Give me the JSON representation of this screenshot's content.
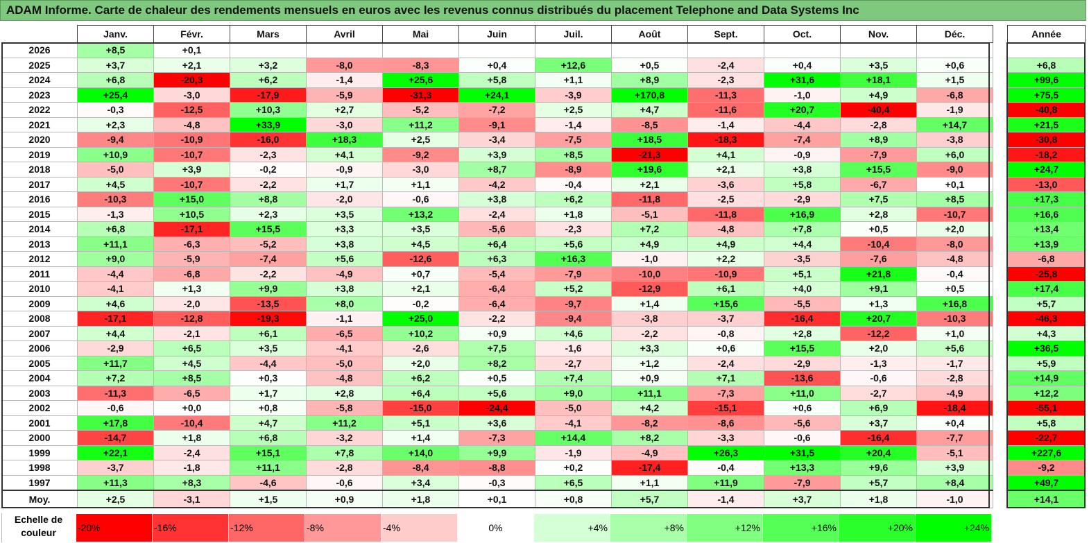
{
  "title": "ADAM Informe. Carte de chaleur des rendements mensuels en euros avec les revenus connus distribués du placement Telephone and Data Systems Inc",
  "chart_data": {
    "type": "heatmap",
    "months": [
      "Janv.",
      "Févr.",
      "Mars",
      "Avril",
      "Mai",
      "Juin",
      "Juil.",
      "Août",
      "Sept.",
      "Oct.",
      "Nov.",
      "Déc."
    ],
    "year_column_label": "Année",
    "rows": [
      {
        "year": "2026",
        "values": [
          "+8,5",
          "+0,1",
          "",
          "",
          "",
          "",
          "",
          "",
          "",
          "",
          "",
          ""
        ],
        "annual": ""
      },
      {
        "year": "2025",
        "values": [
          "+3,7",
          "+2,1",
          "+3,2",
          "-8,0",
          "-8,3",
          "+0,4",
          "+12,6",
          "+0,5",
          "-2,4",
          "+0,4",
          "+3,5",
          "+0,6"
        ],
        "annual": "+6,8"
      },
      {
        "year": "2024",
        "values": [
          "+6,8",
          "-20,3",
          "+6,2",
          "-1,4",
          "+25,6",
          "+5,8",
          "+1,1",
          "+8,9",
          "-2,3",
          "+31,6",
          "+18,1",
          "+1,5"
        ],
        "annual": "+99,6"
      },
      {
        "year": "2023",
        "values": [
          "+25,4",
          "-3,0",
          "-17,9",
          "-5,9",
          "-31,3",
          "+24,1",
          "-3,9",
          "+170,8",
          "-11,3",
          "-1,0",
          "+4,9",
          "-6,8"
        ],
        "annual": "+75,5"
      },
      {
        "year": "2022",
        "values": [
          "-0,3",
          "-12,5",
          "+10,3",
          "+2,7",
          "-5,2",
          "-7,2",
          "+2,5",
          "+4,7",
          "-11,6",
          "+20,7",
          "-40,4",
          "-1,9"
        ],
        "annual": "-40,8"
      },
      {
        "year": "2021",
        "values": [
          "+2,3",
          "-4,8",
          "+33,9",
          "-3,0",
          "+11,2",
          "-9,1",
          "-1,4",
          "-8,5",
          "-1,4",
          "-4,4",
          "-2,8",
          "+14,7"
        ],
        "annual": "+21,5"
      },
      {
        "year": "2020",
        "values": [
          "-9,4",
          "-10,9",
          "-16,0",
          "+18,3",
          "+2,5",
          "-3,4",
          "-7,5",
          "+18,5",
          "-18,3",
          "-7,4",
          "+8,9",
          "-3,8"
        ],
        "annual": "-30,8"
      },
      {
        "year": "2019",
        "values": [
          "+10,9",
          "-10,7",
          "-2,3",
          "+4,1",
          "-9,2",
          "+3,9",
          "+8,5",
          "-21,3",
          "+4,1",
          "-0,9",
          "-7,9",
          "+6,0"
        ],
        "annual": "-18,2"
      },
      {
        "year": "2018",
        "values": [
          "-5,0",
          "+3,9",
          "-0,2",
          "-0,9",
          "-3,0",
          "+8,7",
          "-8,9",
          "+19,6",
          "+2,1",
          "+3,8",
          "+15,5",
          "-9,0"
        ],
        "annual": "+24,7"
      },
      {
        "year": "2017",
        "values": [
          "+4,5",
          "-10,7",
          "-2,2",
          "+1,7",
          "+1,1",
          "-4,2",
          "-0,4",
          "+2,1",
          "-3,6",
          "+5,8",
          "-6,7",
          "+0,1"
        ],
        "annual": "-13,0"
      },
      {
        "year": "2016",
        "values": [
          "-10,3",
          "+15,0",
          "+8,8",
          "-2,0",
          "-0,6",
          "+3,8",
          "+6,2",
          "-11,8",
          "-2,5",
          "-2,9",
          "+7,5",
          "+8,5"
        ],
        "annual": "+17,3"
      },
      {
        "year": "2015",
        "values": [
          "-1,3",
          "+10,5",
          "+2,3",
          "+3,5",
          "+13,2",
          "-2,4",
          "+1,8",
          "-5,1",
          "-11,8",
          "+16,9",
          "+2,8",
          "-10,7"
        ],
        "annual": "+16,6"
      },
      {
        "year": "2014",
        "values": [
          "+6,8",
          "-17,1",
          "+15,5",
          "+3,3",
          "+3,5",
          "-5,6",
          "-2,3",
          "+7,2",
          "-4,8",
          "+7,8",
          "+0,5",
          "+2,0"
        ],
        "annual": "+13,4"
      },
      {
        "year": "2013",
        "values": [
          "+11,1",
          "-6,3",
          "-5,2",
          "+3,8",
          "+4,5",
          "+6,4",
          "+5,6",
          "+4,9",
          "+4,9",
          "+4,4",
          "-10,4",
          "-8,0"
        ],
        "annual": "+13,9"
      },
      {
        "year": "2012",
        "values": [
          "+9,0",
          "-5,9",
          "-7,4",
          "+5,6",
          "-12,6",
          "+6,3",
          "+16,3",
          "-1,0",
          "+2,2",
          "-3,5",
          "-7,6",
          "-4,8"
        ],
        "annual": "-6,8"
      },
      {
        "year": "2011",
        "values": [
          "-4,4",
          "-6,8",
          "-2,2",
          "-4,9",
          "+0,7",
          "-5,4",
          "-7,9",
          "-10,0",
          "-10,9",
          "+5,1",
          "+21,8",
          "-0,4"
        ],
        "annual": "-25,8"
      },
      {
        "year": "2010",
        "values": [
          "-4,1",
          "+1,3",
          "+9,9",
          "+3,8",
          "+2,1",
          "-6,4",
          "+5,2",
          "-12,9",
          "+6,1",
          "+4,0",
          "+9,1",
          "+0,5"
        ],
        "annual": "+17,4"
      },
      {
        "year": "2009",
        "values": [
          "+4,6",
          "-2,0",
          "-13,5",
          "+8,0",
          "-0,2",
          "-6,4",
          "-9,7",
          "+1,4",
          "+15,6",
          "-5,5",
          "+1,3",
          "+16,8"
        ],
        "annual": "+5,7"
      },
      {
        "year": "2008",
        "values": [
          "-17,1",
          "-12,8",
          "-19,3",
          "-1,1",
          "+25,0",
          "-2,2",
          "-9,4",
          "-3,8",
          "-3,7",
          "-16,4",
          "+20,7",
          "-10,3"
        ],
        "annual": "-46,3"
      },
      {
        "year": "2007",
        "values": [
          "+4,4",
          "-2,1",
          "+6,1",
          "-6,5",
          "+10,2",
          "+0,9",
          "+4,6",
          "-2,2",
          "-0,8",
          "+2,8",
          "-12,2",
          "+1,0"
        ],
        "annual": "+4,3"
      },
      {
        "year": "2006",
        "values": [
          "-2,9",
          "+6,5",
          "+3,5",
          "-4,1",
          "-2,6",
          "+7,5",
          "-1,6",
          "+3,3",
          "+0,6",
          "+15,5",
          "+2,0",
          "+5,6"
        ],
        "annual": "+36,5"
      },
      {
        "year": "2005",
        "values": [
          "+11,7",
          "+4,5",
          "-4,4",
          "-5,0",
          "+2,0",
          "+8,2",
          "-2,7",
          "+1,2",
          "-2,4",
          "-2,9",
          "-1,3",
          "-1,7"
        ],
        "annual": "+5,9"
      },
      {
        "year": "2004",
        "values": [
          "+7,2",
          "+8,5",
          "+0,3",
          "-4,8",
          "+6,2",
          "+0,5",
          "+7,4",
          "+0,9",
          "+7,1",
          "-13,6",
          "-0,6",
          "-2,8"
        ],
        "annual": "+14,9"
      },
      {
        "year": "2003",
        "values": [
          "-11,3",
          "-6,5",
          "+1,7",
          "+2,8",
          "+6,4",
          "+5,6",
          "+9,0",
          "+11,1",
          "-7,3",
          "+11,0",
          "-2,7",
          "-4,9"
        ],
        "annual": "+12,2"
      },
      {
        "year": "2002",
        "values": [
          "-0,6",
          "+0,0",
          "+0,8",
          "-5,8",
          "-15,0",
          "-24,4",
          "-5,0",
          "+4,2",
          "-15,1",
          "+0,6",
          "+6,9",
          "-18,4"
        ],
        "annual": "-55,1"
      },
      {
        "year": "2001",
        "values": [
          "+17,8",
          "-10,4",
          "+4,7",
          "+11,2",
          "+5,1",
          "+3,6",
          "-4,1",
          "-8,2",
          "-8,6",
          "-5,6",
          "+3,7",
          "+0,4"
        ],
        "annual": "+5,8"
      },
      {
        "year": "2000",
        "values": [
          "-14,7",
          "+1,8",
          "+6,8",
          "-3,2",
          "+1,4",
          "-7,3",
          "+14,4",
          "+8,2",
          "-3,3",
          "-0,6",
          "-16,4",
          "-7,7"
        ],
        "annual": "-22,7"
      },
      {
        "year": "1999",
        "values": [
          "+22,1",
          "-2,4",
          "+15,1",
          "+7,8",
          "+14,0",
          "+9,9",
          "-1,9",
          "-4,9",
          "+26,3",
          "+31,5",
          "+20,4",
          "-5,1"
        ],
        "annual": "+227,6"
      },
      {
        "year": "1998",
        "values": [
          "-3,7",
          "-1,8",
          "+11,1",
          "-2,8",
          "-8,4",
          "-8,8",
          "+0,2",
          "-17,4",
          "-0,4",
          "+13,3",
          "+9,6",
          "+3,9"
        ],
        "annual": "-9,2"
      },
      {
        "year": "1997",
        "values": [
          "+11,3",
          "+8,3",
          "-4,6",
          "-0,6",
          "+3,4",
          "-0,3",
          "+6,5",
          "+1,1",
          "+11,9",
          "-7,9",
          "+5,7",
          "+8,4"
        ],
        "annual": "+49,7"
      }
    ],
    "average_row": {
      "label": "Moy.",
      "values": [
        "+2,5",
        "-3,1",
        "+1,5",
        "+0,9",
        "+1,8",
        "+0,1",
        "+0,8",
        "+5,7",
        "-1,4",
        "+3,7",
        "+1,8",
        "-1,0"
      ],
      "annual": "+14,1"
    },
    "color_scale": {
      "label": "Echelle de couleur",
      "stops": [
        "-20%",
        "-16%",
        "-12%",
        "-8%",
        "-4%",
        "0%",
        "+4%",
        "+8%",
        "+12%",
        "+16%",
        "+20%",
        "+24%"
      ],
      "stop_values": [
        -20,
        -16,
        -12,
        -8,
        -4,
        0,
        4,
        8,
        12,
        16,
        20,
        24
      ],
      "negative_color": "#ff0000",
      "positive_color": "#00ff00",
      "neutral_color": "#ffffff"
    }
  }
}
